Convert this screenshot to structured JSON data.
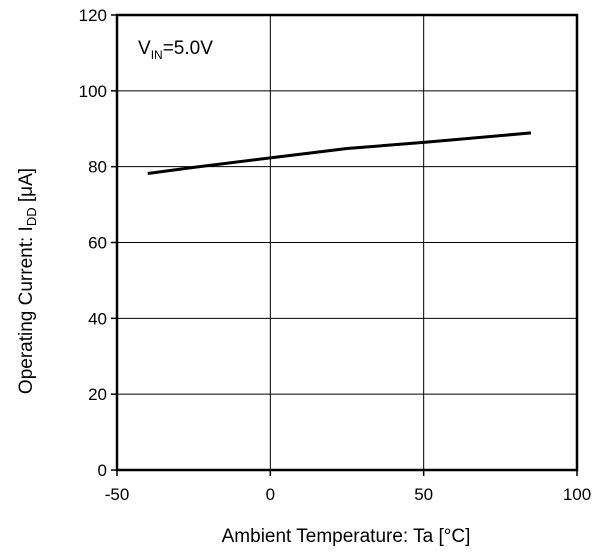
{
  "chart_data": {
    "type": "line",
    "annotation": {
      "main": "V",
      "subscript": "IN",
      "suffix": "=5.0V"
    },
    "xlabel": "Ambient Temperature: Ta [°C]",
    "ylabel": {
      "prefix": "Operating Current: I",
      "subscript": "DD",
      "suffix": " [μA]"
    },
    "xlim": [
      -50,
      100
    ],
    "ylim": [
      0,
      120
    ],
    "x_ticks": [
      -50,
      0,
      50,
      100
    ],
    "y_ticks": [
      0,
      20,
      40,
      60,
      80,
      100,
      120
    ],
    "grid": true,
    "series": [
      {
        "x": [
          -40,
          -25,
          0,
          25,
          50,
          85
        ],
        "y": [
          78.2,
          79.8,
          82.3,
          84.8,
          86.4,
          88.9
        ],
        "color": "#000000"
      }
    ]
  }
}
